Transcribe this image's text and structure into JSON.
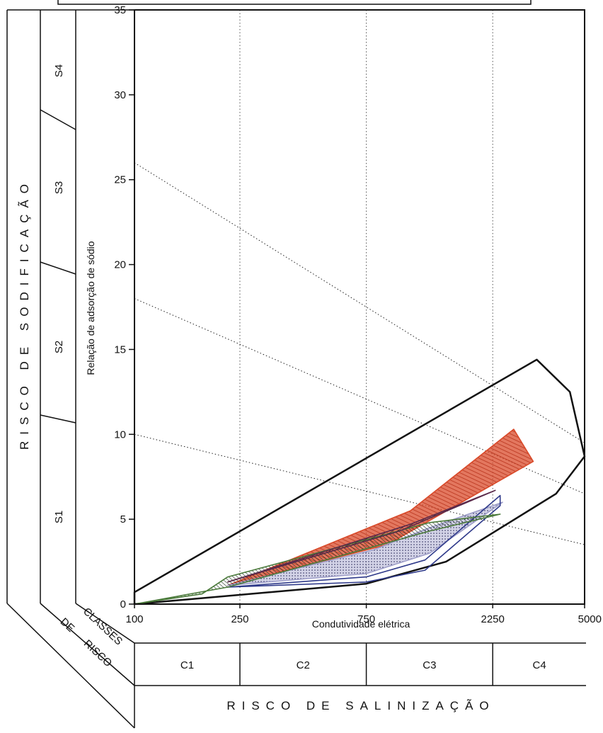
{
  "chart_data": {
    "type": "scatter",
    "xlabel": "Condutividade elétrica",
    "ylabel": "Relação de adsorção de sódio",
    "x_scale": "log",
    "xlim": [
      100,
      5000
    ],
    "ylim": [
      0,
      35
    ],
    "x_ticks": [
      "100",
      "250",
      "750",
      "2250",
      "5000"
    ],
    "y_ticks": [
      "0",
      "5",
      "10",
      "15",
      "20",
      "25",
      "30",
      "35"
    ],
    "grid": {
      "vertical_dotted": true
    },
    "sodium_risk_title": "RISCO DE SODIFICAÇÃO",
    "salinity_risk_title": "RISCO DE SALINIZAÇÃO",
    "risk_classes_label": [
      "CLASSES",
      "DE",
      "RISCO"
    ],
    "salinity_classes": [
      "C1",
      "C2",
      "C3",
      "C4"
    ],
    "sodium_classes": [
      "S1",
      "S2",
      "S3",
      "S4"
    ],
    "sodium_boundaries": [
      {
        "x": [
          100,
          5000
        ],
        "y": [
          10,
          3.5
        ]
      },
      {
        "x": [
          100,
          5000
        ],
        "y": [
          18,
          6.5
        ]
      },
      {
        "x": [
          100,
          5000
        ],
        "y": [
          26,
          9.5
        ]
      }
    ],
    "series": [
      {
        "color": "#111111",
        "polygon": [
          [
            100,
            0
          ],
          [
            750,
            1.2
          ],
          [
            1500,
            2.5
          ],
          [
            3900,
            6.5
          ],
          [
            5000,
            8.7
          ],
          [
            4400,
            12.5
          ],
          [
            3300,
            14.4
          ],
          [
            100,
            0.7
          ]
        ]
      },
      {
        "color": "#d94a2a",
        "polygon": [
          [
            225,
            1.1
          ],
          [
            1100,
            5.5
          ],
          [
            2700,
            10.3
          ],
          [
            3200,
            8.4
          ],
          [
            900,
            3.5
          ]
        ]
      },
      {
        "color": "#9e9ec9",
        "polygon": [
          [
            225,
            1.1
          ],
          [
            750,
            1.8
          ],
          [
            1300,
            3.0
          ],
          [
            2450,
            6.0
          ],
          [
            1300,
            4.5
          ],
          [
            800,
            3.2
          ]
        ]
      },
      {
        "color": "#2f3a8a",
        "polygon": [
          [
            225,
            1.0
          ],
          [
            750,
            1.6
          ],
          [
            1250,
            2.6
          ],
          [
            2400,
            6.4
          ],
          [
            2400,
            5.8
          ],
          [
            1250,
            2.0
          ],
          [
            750,
            1.3
          ]
        ]
      },
      {
        "color": "#4a7a3a",
        "polygon": [
          [
            100,
            0
          ],
          [
            180,
            0.6
          ],
          [
            225,
            1.6
          ],
          [
            1300,
            4.8
          ],
          [
            2400,
            5.3
          ],
          [
            1300,
            4.3
          ],
          [
            225,
            1.0
          ]
        ]
      },
      {
        "color": "#5a2a4a",
        "polygon": [
          [
            225,
            1.3
          ],
          [
            1000,
            4.3
          ],
          [
            2300,
            6.7
          ],
          [
            1100,
            4.7
          ]
        ]
      }
    ]
  }
}
